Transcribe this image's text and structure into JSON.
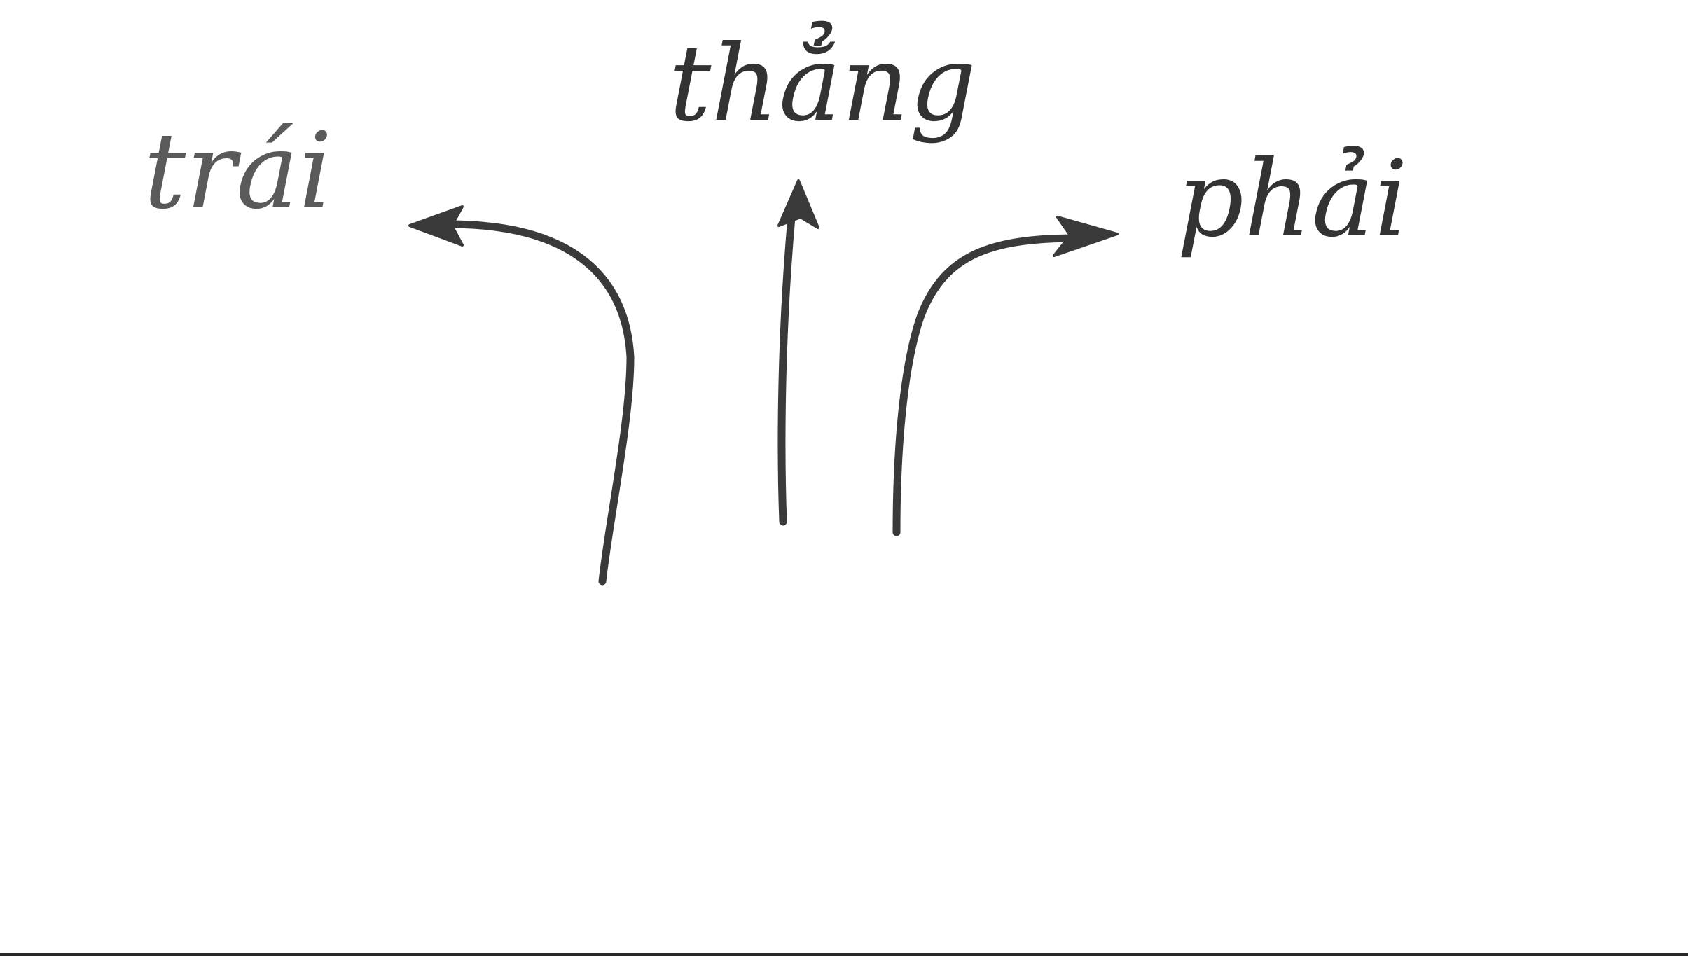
{
  "labels": {
    "left": "trái",
    "straight": "thẳng",
    "right": "phải"
  },
  "arrows": [
    {
      "name": "arrow-left",
      "direction": "left"
    },
    {
      "name": "arrow-straight",
      "direction": "straight"
    },
    {
      "name": "arrow-right",
      "direction": "right"
    }
  ],
  "colors": {
    "ink": "#3a3a3a",
    "paper": "#ffffff"
  }
}
